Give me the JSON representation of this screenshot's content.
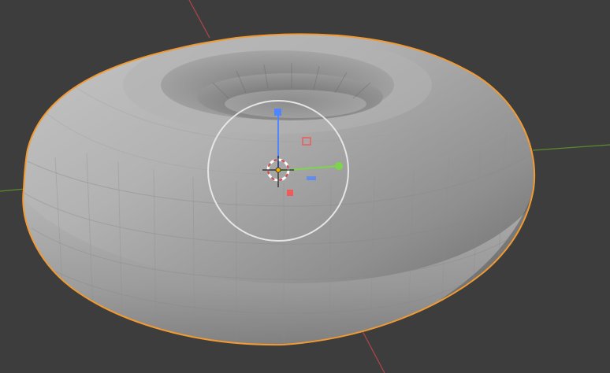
{
  "viewport": {
    "background_color": "#3d3d3d",
    "grid": {
      "x_axis_color": "#c0474a",
      "y_axis_color": "#6aa52f"
    },
    "object": {
      "type": "torus",
      "selected": true,
      "outline_color": "#f29a32",
      "surface_color": "#a9a9a9"
    },
    "gizmo": {
      "type": "transform",
      "circle_color": "#e6e6e6",
      "x_color": "#f05a5a",
      "y_color": "#7dd64a",
      "z_color": "#4f86ff"
    },
    "cursor_3d": {
      "outer_color": "#ffffff",
      "accent_color": "#d44b4b",
      "center_color": "#f4b400"
    }
  }
}
